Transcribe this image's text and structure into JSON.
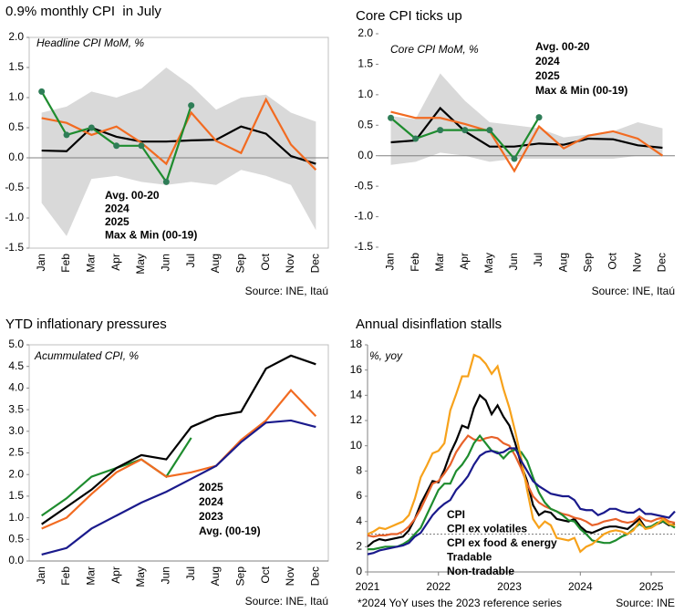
{
  "chart_data": [
    {
      "type": "line",
      "title": "0.9% monthly CPI  in July",
      "subtitle": "Headline CPI MoM, %",
      "source": "Source: INE, Itaú",
      "categories": [
        "Jan",
        "Feb",
        "Mar",
        "Apr",
        "May",
        "Jun",
        "Jul",
        "Aug",
        "Sep",
        "Oct",
        "Nov",
        "Dec"
      ],
      "ylim": [
        -1.5,
        2.0
      ],
      "yticks": [
        -1.5,
        {
          "value": -1,
          "label": "-1.0"
        },
        -0.5,
        {
          "value": 0,
          "label": "0.0"
        },
        0.5,
        {
          "value": 1,
          "label": "1.0"
        },
        1.5,
        {
          "value": 2,
          "label": "2.0"
        }
      ],
      "band": {
        "name": "Max & Min (00-19)",
        "color": "#d9d9d9",
        "upper": [
          0.75,
          0.85,
          1.1,
          1.0,
          1.15,
          1.5,
          1.2,
          0.8,
          1.0,
          1.05,
          0.75,
          0.6
        ],
        "lower": [
          -0.75,
          -1.3,
          -0.35,
          -0.3,
          -0.4,
          -0.45,
          -0.4,
          -0.45,
          -0.2,
          -0.3,
          -0.45,
          -1.2
        ]
      },
      "series": [
        {
          "name": "Avg. 00-20",
          "color": "#000000",
          "values": [
            0.12,
            0.11,
            0.5,
            0.35,
            0.27,
            0.27,
            0.29,
            0.3,
            0.52,
            0.4,
            0.03,
            -0.1
          ]
        },
        {
          "name": "2024",
          "color": "#f26b21",
          "values": [
            0.66,
            0.58,
            0.38,
            0.52,
            0.25,
            -0.1,
            0.75,
            0.28,
            0.08,
            0.97,
            0.22,
            -0.2
          ]
        },
        {
          "name": "2025",
          "color": "#1e8c2e",
          "markers": true,
          "values": [
            1.1,
            0.38,
            0.5,
            0.2,
            0.2,
            -0.4,
            0.87,
            null,
            null,
            null,
            null,
            null
          ]
        }
      ]
    },
    {
      "type": "line",
      "title": "Core CPI ticks up",
      "subtitle": "Core CPI MoM, %",
      "source": "Source: INE, Itaú",
      "categories": [
        "Jan",
        "Feb",
        "Mar",
        "Apr",
        "May",
        "Jun",
        "Jul",
        "Aug",
        "Sep",
        "Oct",
        "Nov",
        "Dec"
      ],
      "ylim": [
        -1.5,
        2.0
      ],
      "yticks": [
        -1.5,
        {
          "value": -1,
          "label": "-1.0"
        },
        -0.5,
        {
          "value": 0,
          "label": "0.0"
        },
        0.5,
        {
          "value": 1,
          "label": "1.0"
        },
        1.5,
        {
          "value": 2,
          "label": "2.0"
        }
      ],
      "band": {
        "name": "Max & Min (00-19)",
        "color": "#d9d9d9",
        "upper": [
          0.65,
          0.6,
          1.35,
          0.9,
          0.55,
          0.5,
          0.45,
          0.3,
          0.35,
          0.4,
          0.55,
          0.45
        ],
        "lower": [
          -0.15,
          -0.1,
          0.05,
          0.0,
          -0.1,
          -0.05,
          -0.05,
          -0.05,
          -0.05,
          -0.05,
          0.0,
          0.0
        ]
      },
      "series": [
        {
          "name": "Avg. 00-20",
          "color": "#000000",
          "values": [
            0.22,
            0.25,
            0.78,
            0.4,
            0.15,
            0.15,
            0.2,
            0.18,
            0.28,
            0.27,
            0.17,
            0.13
          ]
        },
        {
          "name": "2024",
          "color": "#f26b21",
          "values": [
            0.72,
            0.62,
            0.62,
            0.52,
            0.4,
            -0.25,
            0.48,
            0.12,
            0.33,
            0.4,
            0.28,
            0.0
          ]
        },
        {
          "name": "2025",
          "color": "#1e8c2e",
          "markers": true,
          "values": [
            0.62,
            0.28,
            0.42,
            0.42,
            0.42,
            -0.05,
            0.63,
            null,
            null,
            null,
            null,
            null
          ]
        }
      ]
    },
    {
      "type": "line",
      "title": "YTD inflationary pressures",
      "subtitle": "Acummulated CPI, %",
      "source": "Source: INE, Itaú",
      "categories": [
        "Jan",
        "Feb",
        "Mar",
        "Apr",
        "May",
        "Jun",
        "Jul",
        "Aug",
        "Sep",
        "Oct",
        "Nov",
        "Dec"
      ],
      "ylim": [
        0,
        5.0
      ],
      "yticks": [
        {
          "value": 0,
          "label": "0.0"
        },
        0.5,
        {
          "value": 1,
          "label": "1.0"
        },
        1.5,
        {
          "value": 2,
          "label": "2.0"
        },
        2.5,
        {
          "value": 3,
          "label": "3.0"
        },
        3.5,
        {
          "value": 4,
          "label": "4.0"
        },
        4.5,
        {
          "value": 5,
          "label": "5.0"
        }
      ],
      "series": [
        {
          "name": "2025",
          "color": "#1e8c2e",
          "values": [
            1.05,
            1.45,
            1.95,
            2.15,
            2.35,
            1.95,
            2.85,
            null,
            null,
            null,
            null,
            null
          ]
        },
        {
          "name": "2024",
          "color": "#000000",
          "values": [
            0.85,
            1.25,
            1.65,
            2.15,
            2.45,
            2.35,
            3.1,
            3.35,
            3.45,
            4.45,
            4.75,
            4.55
          ]
        },
        {
          "name": "2023",
          "color": "#f26b21",
          "values": [
            0.75,
            1.0,
            1.55,
            2.05,
            2.35,
            1.95,
            2.05,
            2.2,
            2.8,
            3.25,
            3.95,
            3.35
          ]
        },
        {
          "name": "Avg. (00-19)",
          "color": "#1a1a8c",
          "values": [
            0.15,
            0.3,
            0.75,
            1.05,
            1.35,
            1.6,
            1.9,
            2.2,
            2.75,
            3.2,
            3.25,
            3.1
          ]
        }
      ]
    },
    {
      "type": "line",
      "title": "Annual disinflation stalls",
      "subtitle": "%, yoy",
      "source": "Source: INE",
      "note": "*2024 YoY uses the 2023 reference series",
      "categories": [
        "2021",
        null,
        null,
        null,
        null,
        null,
        null,
        null,
        null,
        null,
        null,
        null,
        "2022",
        null,
        null,
        null,
        null,
        null,
        null,
        null,
        null,
        null,
        null,
        null,
        "2023",
        null,
        null,
        null,
        null,
        null,
        null,
        null,
        null,
        null,
        null,
        null,
        "2024",
        null,
        null,
        null,
        null,
        null,
        null,
        null,
        null,
        null,
        null,
        null,
        "2025",
        null,
        null,
        null,
        null
      ],
      "ylim": [
        0,
        18
      ],
      "yticks": [
        0,
        2,
        4,
        6,
        8,
        10,
        12,
        14,
        16,
        18
      ],
      "reference_line": 3,
      "series": [
        {
          "name": "CPI",
          "color": "#000000",
          "values": [
            2.0,
            2.4,
            2.6,
            2.5,
            2.6,
            2.7,
            2.8,
            3.3,
            4.2,
            5.4,
            6.3,
            7.2,
            7.1,
            8.1,
            9.4,
            10.4,
            11.6,
            11.4,
            13.0,
            14.0,
            13.6,
            12.5,
            13.2,
            12.3,
            11.6,
            10.2,
            8.5,
            7.2,
            5.3,
            4.5,
            4.8,
            4.7,
            4.2,
            4.1,
            4.0,
            4.2,
            3.6,
            3.2,
            3.1,
            3.3,
            3.5,
            3.6,
            3.6,
            3.5,
            3.4,
            3.8,
            4.2,
            3.5,
            3.6,
            3.8,
            4.0,
            3.7,
            3.8
          ]
        },
        {
          "name": "CPI ex volatiles",
          "color": "#e8622a",
          "values": [
            2.9,
            2.8,
            2.9,
            2.9,
            3.0,
            3.0,
            3.2,
            3.6,
            4.2,
            5.0,
            6.0,
            7.0,
            7.2,
            7.8,
            8.5,
            9.5,
            10.2,
            10.8,
            10.5,
            10.4,
            10.6,
            10.7,
            10.6,
            10.2,
            10.0,
            9.2,
            8.2,
            7.0,
            6.0,
            5.5,
            5.2,
            5.0,
            4.8,
            4.6,
            4.5,
            4.3,
            4.2,
            4.0,
            3.7,
            3.8,
            4.0,
            4.1,
            4.2,
            4.0,
            3.9,
            4.0,
            4.4,
            4.1,
            4.0,
            4.2,
            4.3,
            4.0,
            3.9
          ]
        },
        {
          "name": "CPI ex food & energy",
          "color": "#1e8c2e",
          "values": [
            1.8,
            1.8,
            1.9,
            2.0,
            2.0,
            2.0,
            2.2,
            2.5,
            3.0,
            3.5,
            4.5,
            5.5,
            6.5,
            7.0,
            7.0,
            8.0,
            8.5,
            9.2,
            10.2,
            10.8,
            10.2,
            9.6,
            9.5,
            9.0,
            9.5,
            9.7,
            9.5,
            8.8,
            7.5,
            6.3,
            5.5,
            5.0,
            4.8,
            4.5,
            4.1,
            4.0,
            3.4,
            3.0,
            2.5,
            2.4,
            2.3,
            2.3,
            2.5,
            2.8,
            3.0,
            3.4,
            3.8,
            3.5,
            3.6,
            3.9,
            4.0,
            3.8,
            3.5
          ]
        },
        {
          "name": "Tradable",
          "color": "#f7a21b",
          "values": [
            3.0,
            3.2,
            3.5,
            3.4,
            3.6,
            3.8,
            4.0,
            4.5,
            5.8,
            7.5,
            8.4,
            9.4,
            9.6,
            10.2,
            12.8,
            14.1,
            15.5,
            15.5,
            17.2,
            17.0,
            16.5,
            15.7,
            16.3,
            14.5,
            13.0,
            11.1,
            9.0,
            6.5,
            4.2,
            3.5,
            4.0,
            3.7,
            2.7,
            2.6,
            2.5,
            2.7,
            1.6,
            2.0,
            2.2,
            2.6,
            3.0,
            3.2,
            3.3,
            3.2,
            3.0,
            3.3,
            4.0,
            3.4,
            3.5,
            3.8,
            4.2,
            3.8,
            3.7
          ]
        },
        {
          "name": "Non-tradable",
          "color": "#1a1a8c",
          "values": [
            1.4,
            1.5,
            1.7,
            1.8,
            1.9,
            2.0,
            2.1,
            2.3,
            2.8,
            3.1,
            3.8,
            4.5,
            5.0,
            5.4,
            5.7,
            6.5,
            7.0,
            7.6,
            8.5,
            9.2,
            9.5,
            9.6,
            9.4,
            9.5,
            9.8,
            9.8,
            8.8,
            8.0,
            7.2,
            6.8,
            6.5,
            6.2,
            6.1,
            6.0,
            6.0,
            5.7,
            5.0,
            4.9,
            4.9,
            4.5,
            4.7,
            5.0,
            5.0,
            4.8,
            4.7,
            4.7,
            5.0,
            4.6,
            4.6,
            4.5,
            4.4,
            4.3,
            4.8
          ]
        }
      ]
    }
  ]
}
